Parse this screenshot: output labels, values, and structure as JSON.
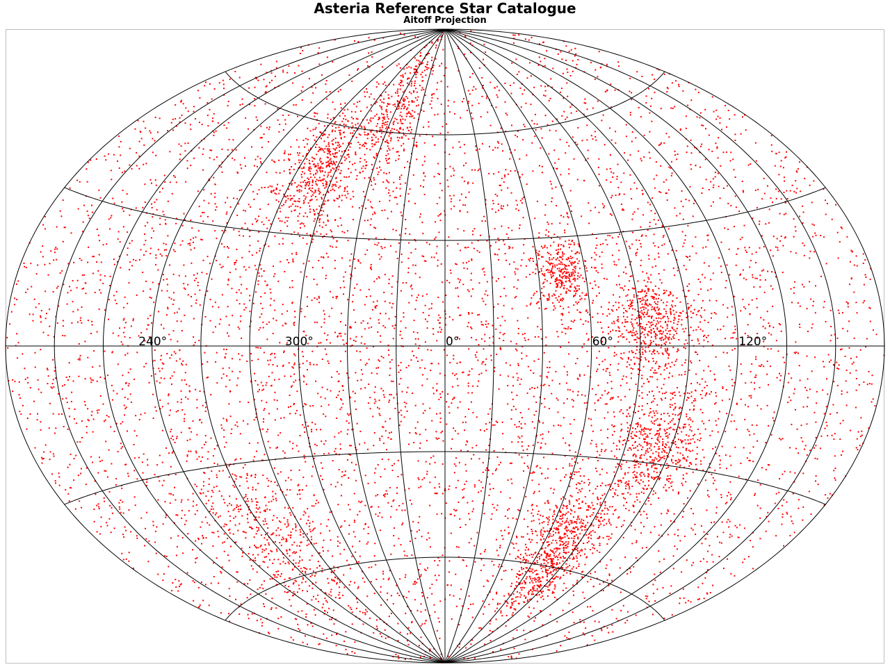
{
  "chart_data": {
    "type": "scatter",
    "title": "Asteria Reference Star Catalogue",
    "subtitle": "Aitoff Projection",
    "projection": "aitoff",
    "xlabel": "",
    "ylabel": "",
    "x_range_deg": [
      -180,
      180
    ],
    "y_range_deg": [
      -90,
      90
    ],
    "grid": true,
    "meridian_spacing_deg": 20,
    "parallel_spacing_deg": 30,
    "longitude_tick_labels": [
      {
        "lon": -120,
        "text": "240°"
      },
      {
        "lon": -60,
        "text": "300°"
      },
      {
        "lon": 0,
        "text": "0°"
      },
      {
        "lon": 60,
        "text": "60°"
      },
      {
        "lon": 120,
        "text": "120°"
      }
    ],
    "series": [
      {
        "marker_color": "#ff0000",
        "approx_point_count": 9000,
        "distribution": "near-uniform over the sky with denser clumps",
        "clusters": [
          {
            "lon": -68,
            "lat": 48,
            "spread": 10,
            "weight": 0.05
          },
          {
            "lon": -40,
            "lat": 65,
            "spread": 12,
            "weight": 0.04
          },
          {
            "lon": 50,
            "lat": 20,
            "spread": 6,
            "weight": 0.03
          },
          {
            "lon": 85,
            "lat": 5,
            "spread": 8,
            "weight": 0.05
          },
          {
            "lon": 95,
            "lat": -25,
            "spread": 10,
            "weight": 0.05
          },
          {
            "lon": 70,
            "lat": -55,
            "spread": 12,
            "weight": 0.08
          },
          {
            "lon": -100,
            "lat": -50,
            "spread": 15,
            "weight": 0.04
          }
        ]
      }
    ]
  }
}
